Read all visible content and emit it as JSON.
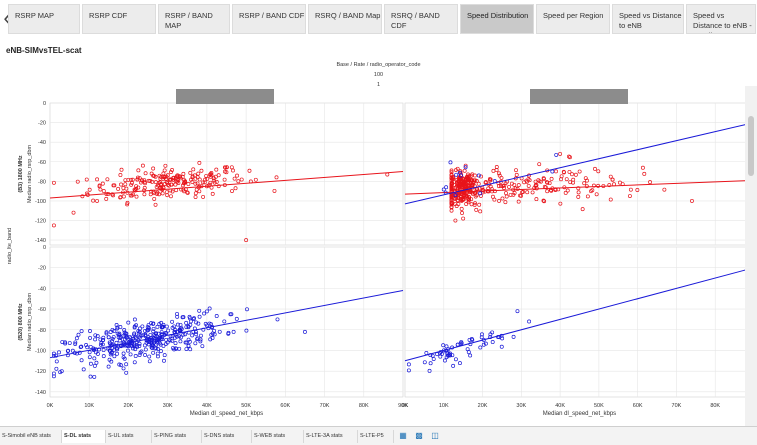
{
  "tabs": [
    {
      "label": "RSRP MAP",
      "active": false
    },
    {
      "label": "RSRP CDF",
      "active": false
    },
    {
      "label": "RSRP / BAND MAP",
      "active": false
    },
    {
      "label": "RSRP / BAND CDF",
      "active": false
    },
    {
      "label": "RSRQ / BAND Map",
      "active": false
    },
    {
      "label": "RSRQ / BAND CDF",
      "active": false
    },
    {
      "label": "Speed Distribution",
      "active": true
    },
    {
      "label": "Speed per Region",
      "active": false
    },
    {
      "label": "Speed vs Distance to eNB",
      "active": false
    },
    {
      "label": "Speed vs Distance to eNB - Detail",
      "active": false
    }
  ],
  "back_icon": "chevron-left-icon",
  "page_title": "eNB-SIMvsTEL-scat",
  "legend": {
    "title": "Base  /  Rate  /  radio_operator_code",
    "value1": "100",
    "value2": "1"
  },
  "colors": {
    "red": "#e8141b",
    "blue": "#1a1ad8",
    "grid": "#e6e6e6",
    "panel_bg": "#ffffff",
    "header_box": "#8c8c8c"
  },
  "chart_data": [
    {
      "type": "scatter",
      "title": "",
      "xlabel": "Median dl_speed_net_kbps",
      "y_row_labels": [
        "(B3) 1800 MHz",
        "(B20) 800 MHz"
      ],
      "ylabel": "Median radio_rsrp_dbm",
      "facet_label": "radio_lte_band",
      "x_ticks": [
        "0K",
        "10K",
        "20K",
        "30K",
        "40K",
        "50K",
        "60K",
        "70K",
        "80K",
        "90K"
      ],
      "y_ticks": [
        "0",
        "-20",
        "-40",
        "-60",
        "-80",
        "-100",
        "-120",
        "-140"
      ],
      "xlim": [
        0,
        90000
      ],
      "ylim": [
        -145,
        0
      ],
      "panels": [
        {
          "row": 0,
          "col": 0,
          "series_color": "red",
          "trend": [
            [
              0,
              -97
            ],
            [
              90000,
              -70
            ]
          ],
          "cloud": {
            "xc": 30000,
            "xs": 10000,
            "yc": -82,
            "ys": 8,
            "n": 230,
            "xmin": 1000,
            "xmax": 88000
          },
          "points": [
            [
              1000,
              -125
            ],
            [
              6000,
              -112
            ],
            [
              50000,
              -140
            ],
            [
              86000,
              -73
            ],
            [
              12000,
              -100
            ],
            [
              18000,
              -96
            ]
          ]
        },
        {
          "row": 0,
          "col": 1,
          "series_color": "red",
          "trend": [
            [
              0,
              -93
            ],
            [
              90000,
              -79
            ]
          ],
          "cloud": {
            "xc": 25000,
            "xs": 15000,
            "yc": -85,
            "ys": 9,
            "n": 420,
            "xmin": 12000,
            "xmax": 76000,
            "dense_x": 15000
          },
          "points": [
            [
              40000,
              -52
            ],
            [
              13000,
              -120
            ],
            [
              15000,
              -118
            ],
            [
              74000,
              -100
            ],
            [
              58000,
              -95
            ]
          ]
        },
        {
          "row": 1,
          "col": 0,
          "series_color": "blue",
          "trend": [
            [
              0,
              -107
            ],
            [
              90000,
              -42
            ]
          ],
          "cloud": {
            "xc": 24000,
            "xs": 10000,
            "yc": -90,
            "ys": 9,
            "n": 380,
            "xmin": 1000,
            "xmax": 65000
          },
          "points": [
            [
              1000,
              -125
            ],
            [
              3000,
              -120
            ],
            [
              65000,
              -82
            ],
            [
              58000,
              -70
            ],
            [
              46000,
              -65
            ]
          ]
        },
        {
          "row": 1,
          "col": 1,
          "series_color": "blue",
          "trend": [
            [
              0,
              -110
            ],
            [
              90000,
              -20
            ]
          ],
          "cloud": {
            "xc": 13000,
            "xs": 6000,
            "yc": -100,
            "ys": 6,
            "n": 60,
            "xmin": 1000,
            "xmax": 28000
          },
          "points": [
            [
              29000,
              -62
            ],
            [
              32000,
              -72
            ],
            [
              24000,
              -87
            ]
          ]
        },
        {
          "row": 0,
          "col": 1,
          "series_color": "blue",
          "trend": [
            [
              0,
              -103
            ],
            [
              90000,
              -20
            ]
          ],
          "cloud": {
            "xc": 15000,
            "xs": 3000,
            "yc": -80,
            "ys": 10,
            "n": 12,
            "xmin": 10000,
            "xmax": 30000
          },
          "points": [
            [
              39000,
              -53
            ],
            [
              38000,
              -70
            ]
          ]
        }
      ]
    }
  ],
  "sheet_tabs": [
    {
      "label": "S-Simobil eNB stats",
      "active": false
    },
    {
      "label": "S-DL stats",
      "active": true
    },
    {
      "label": "S-UL stats",
      "active": false
    },
    {
      "label": "S-PING stats",
      "active": false
    },
    {
      "label": "S-DNS stats",
      "active": false
    },
    {
      "label": "S-WEB stats",
      "active": false
    },
    {
      "label": "S-LTE-3A stats",
      "active": false
    },
    {
      "label": "S-LTE-P5",
      "active": false
    }
  ],
  "status_icons": [
    "new-sheet-icon",
    "new-dashboard-icon",
    "new-story-icon"
  ]
}
